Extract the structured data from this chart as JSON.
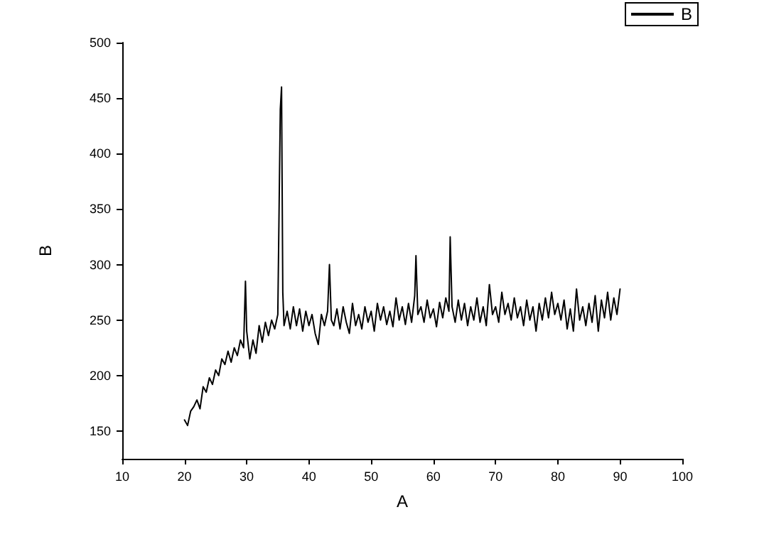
{
  "chart_data": {
    "type": "line",
    "xlabel": "A",
    "ylabel": "B",
    "legend": "top right",
    "grid": false,
    "marker": "none",
    "line_style": "solid",
    "xlim": [
      10,
      100
    ],
    "xticks": [
      10,
      20,
      30,
      40,
      50,
      60,
      70,
      80,
      90,
      100
    ],
    "ylim": [
      125,
      500
    ],
    "yticks": [
      150,
      200,
      250,
      300,
      350,
      400,
      450,
      500
    ],
    "series": [
      {
        "name": "B",
        "color": "#000000",
        "x": [
          20,
          20.5,
          21,
          21.5,
          22,
          22.5,
          23,
          23.5,
          24,
          24.5,
          25,
          25.5,
          26,
          26.5,
          27,
          27.5,
          28,
          28.5,
          29,
          29.5,
          29.8,
          30,
          30.5,
          31,
          31.5,
          32,
          32.5,
          33,
          33.5,
          34,
          34.5,
          35,
          35.4,
          35.6,
          35.8,
          36,
          36.5,
          37,
          37.5,
          38,
          38.5,
          39,
          39.5,
          40,
          40.5,
          41,
          41.5,
          42,
          42.5,
          43,
          43.3,
          43.6,
          44,
          44.5,
          45,
          45.5,
          46,
          46.5,
          47,
          47.5,
          48,
          48.5,
          49,
          49.5,
          50,
          50.5,
          51,
          51.5,
          52,
          52.5,
          53,
          53.5,
          54,
          54.5,
          55,
          55.5,
          56,
          56.5,
          57,
          57.2,
          57.5,
          58,
          58.5,
          59,
          59.5,
          60,
          60.5,
          61,
          61.5,
          62,
          62.5,
          62.7,
          63,
          63.5,
          64,
          64.5,
          65,
          65.5,
          66,
          66.5,
          67,
          67.5,
          68,
          68.5,
          69,
          69.5,
          70,
          70.5,
          71,
          71.5,
          72,
          72.5,
          73,
          73.5,
          74,
          74.5,
          75,
          75.5,
          76,
          76.5,
          77,
          77.5,
          78,
          78.5,
          79,
          79.5,
          80,
          80.5,
          81,
          81.5,
          82,
          82.5,
          83,
          83.5,
          84,
          84.5,
          85,
          85.5,
          86,
          86.5,
          87,
          87.5,
          88,
          88.5,
          89,
          89.5,
          90
        ],
        "values": [
          160,
          155,
          168,
          172,
          178,
          170,
          190,
          185,
          198,
          192,
          205,
          200,
          215,
          210,
          222,
          212,
          225,
          218,
          232,
          225,
          285,
          240,
          215,
          232,
          220,
          245,
          230,
          248,
          236,
          250,
          242,
          255,
          440,
          460,
          275,
          245,
          258,
          242,
          262,
          245,
          260,
          240,
          258,
          245,
          255,
          238,
          228,
          255,
          245,
          258,
          300,
          250,
          245,
          260,
          242,
          262,
          248,
          238,
          265,
          245,
          255,
          242,
          262,
          248,
          258,
          240,
          265,
          250,
          262,
          246,
          258,
          244,
          270,
          250,
          262,
          246,
          265,
          248,
          272,
          308,
          255,
          262,
          248,
          268,
          252,
          260,
          244,
          266,
          252,
          270,
          258,
          325,
          262,
          248,
          268,
          250,
          265,
          245,
          262,
          250,
          270,
          248,
          262,
          245,
          282,
          255,
          262,
          248,
          275,
          255,
          265,
          250,
          270,
          252,
          262,
          245,
          268,
          250,
          262,
          240,
          265,
          250,
          270,
          252,
          275,
          255,
          265,
          250,
          268,
          242,
          260,
          240,
          278,
          250,
          262,
          245,
          265,
          248,
          272,
          240,
          268,
          252,
          275,
          250,
          270,
          255,
          278
        ]
      }
    ]
  }
}
